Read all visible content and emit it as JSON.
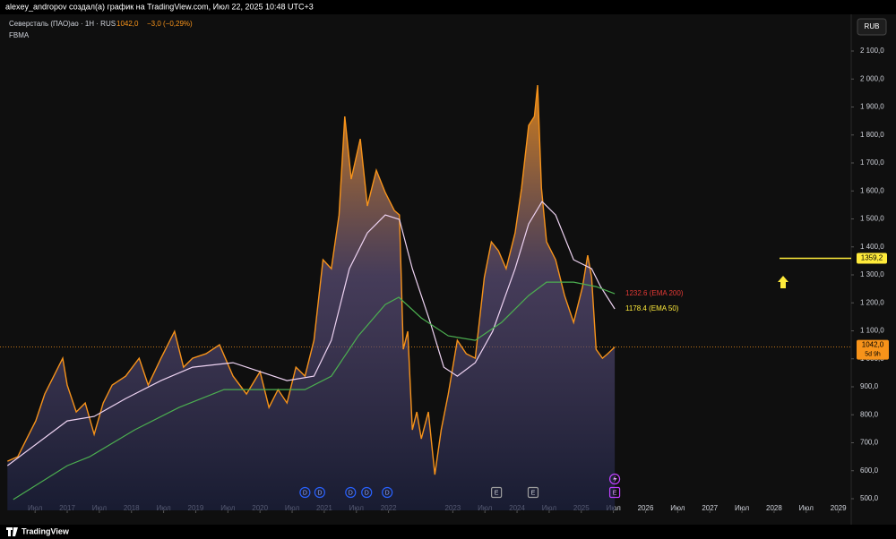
{
  "header": {
    "byline": "alexey_andropov создал(а) график на TradingView.com, Июл 22, 2025 10:48 UTC+3",
    "symbol": "Северсталь (ПАО)ао · 1H · RUS",
    "price": "1042,0",
    "change": "−3,0 (−0,29%)",
    "indicator": "FBMA",
    "currency": "RUB",
    "brand": "TradingView"
  },
  "chart_data": {
    "type": "line",
    "xlim": [
      2015.954,
      2029.2
    ],
    "ylim": [
      458.4,
      2231.2
    ],
    "yticks": [
      {
        "value": 500,
        "label": "500,0"
      },
      {
        "value": 600,
        "label": "600,0"
      },
      {
        "value": 700,
        "label": "700,0"
      },
      {
        "value": 800,
        "label": "800,0"
      },
      {
        "value": 900,
        "label": "900,0"
      },
      {
        "value": 1000,
        "label": "1 000,0"
      },
      {
        "value": 1100,
        "label": "1 100,0"
      },
      {
        "value": 1200,
        "label": "1 200,0"
      },
      {
        "value": 1300,
        "label": "1 300,0"
      },
      {
        "value": 1400,
        "label": "1 400,0"
      },
      {
        "value": 1500,
        "label": "1 500,0"
      },
      {
        "value": 1600,
        "label": "1 600,0"
      },
      {
        "value": 1700,
        "label": "1 700,0"
      },
      {
        "value": 1800,
        "label": "1 800,0"
      },
      {
        "value": 1900,
        "label": "1 900,0"
      },
      {
        "value": 2000,
        "label": "2 000,0"
      },
      {
        "value": 2100,
        "label": "2 100,0"
      }
    ],
    "xticks": [
      {
        "value": 2016.5,
        "label": "Июл"
      },
      2017,
      {
        "value": 2017.5,
        "label": "Июл"
      },
      2018,
      {
        "value": 2018.5,
        "label": "Июл"
      },
      2019,
      {
        "value": 2019.5,
        "label": "Июл"
      },
      2020,
      {
        "value": 2020.5,
        "label": "Июл"
      },
      2021,
      {
        "value": 2021.5,
        "label": "Июл"
      },
      2022,
      2023,
      {
        "value": 2023.5,
        "label": "Июл"
      },
      2024,
      {
        "value": 2024.5,
        "label": "Июл"
      },
      2025,
      {
        "value": 2025.5,
        "label": "Июл"
      },
      2026,
      {
        "value": 2026.5,
        "label": "Июл"
      },
      2027,
      {
        "value": 2027.5,
        "label": "Июл"
      },
      2028,
      {
        "value": 2028.5,
        "label": "Июл"
      },
      2029
    ],
    "series": [
      {
        "color": "#f7931a",
        "area": true,
        "x": [
          2016.07,
          2016.23,
          2016.37,
          2016.51,
          2016.65,
          2016.79,
          2016.93,
          2017.0,
          2017.14,
          2017.28,
          2017.42,
          2017.56,
          2017.7,
          2017.91,
          2018.12,
          2018.26,
          2018.46,
          2018.67,
          2018.81,
          2018.95,
          2019.16,
          2019.37,
          2019.58,
          2019.79,
          2020.0,
          2020.14,
          2020.28,
          2020.42,
          2020.56,
          2020.7,
          2020.84,
          2020.98,
          2021.11,
          2021.23,
          2021.32,
          2021.42,
          2021.56,
          2021.67,
          2021.81,
          2021.95,
          2022.09,
          2022.17,
          2022.23,
          2022.3,
          2022.37,
          2022.44,
          2022.51,
          2022.62,
          2022.72,
          2022.82,
          2022.93,
          2023.07,
          2023.21,
          2023.35,
          2023.49,
          2023.6,
          2023.71,
          2023.83,
          2023.97,
          2024.07,
          2024.18,
          2024.27,
          2024.32,
          2024.38,
          2024.46,
          2024.6,
          2024.74,
          2024.88,
          2025.02,
          2025.1,
          2025.16,
          2025.23,
          2025.33,
          2025.41,
          2025.52
        ],
        "values": [
          634,
          650,
          714,
          778,
          874,
          938,
          1002,
          906,
          810,
          842,
          730,
          842,
          906,
          938,
          1002,
          906,
          1002,
          1098,
          970,
          1002,
          1018,
          1050,
          938,
          874,
          954,
          826,
          890,
          842,
          970,
          938,
          1066,
          1354,
          1322,
          1514,
          1866,
          1642,
          1786,
          1546,
          1674,
          1594,
          1530,
          1514,
          1034,
          1098,
          746,
          810,
          714,
          810,
          586,
          746,
          874,
          1066,
          1018,
          1002,
          1290,
          1418,
          1386,
          1322,
          1450,
          1610,
          1834,
          1866,
          1978,
          1610,
          1418,
          1354,
          1226,
          1130,
          1258,
          1370,
          1290,
          1034,
          1002,
          1018,
          1042
        ]
      },
      {
        "color": "#eed3f2",
        "x": [
          2016.07,
          2017.0,
          2017.42,
          2017.91,
          2018.46,
          2018.95,
          2019.58,
          2020.0,
          2020.42,
          2020.84,
          2021.11,
          2021.39,
          2021.67,
          2021.95,
          2022.17,
          2022.37,
          2022.65,
          2022.86,
          2023.07,
          2023.35,
          2023.62,
          2023.97,
          2024.18,
          2024.39,
          2024.6,
          2024.88,
          2025.16,
          2025.3,
          2025.52
        ],
        "values": [
          618,
          778,
          794,
          858,
          922,
          970,
          986,
          954,
          922,
          938,
          1066,
          1322,
          1450,
          1514,
          1498,
          1322,
          1130,
          970,
          938,
          986,
          1098,
          1322,
          1482,
          1562,
          1514,
          1354,
          1322,
          1258,
          1178.4
        ]
      },
      {
        "color": "#4caf50",
        "x": [
          2016.16,
          2017.0,
          2017.35,
          2018.05,
          2018.74,
          2019.44,
          2020.0,
          2020.7,
          2021.11,
          2021.53,
          2021.95,
          2022.16,
          2022.51,
          2022.93,
          2023.35,
          2023.76,
          2024.18,
          2024.46,
          2024.88,
          2025.23,
          2025.52
        ],
        "values": [
          497,
          618,
          650,
          746,
          826,
          890,
          890,
          890,
          938,
          1082,
          1194,
          1220,
          1146,
          1082,
          1066,
          1130,
          1226,
          1274,
          1274,
          1258,
          1232.6
        ]
      }
    ],
    "annotations": [
      {
        "text": "1232.6 (EMA 200)",
        "color": "#e53935",
        "value": 1232.6
      },
      {
        "text": "1178.4 (EMA 50)",
        "color": "#ffeb3b",
        "value": 1178.4
      }
    ],
    "price_label": {
      "value": 1042,
      "label": "1042,0",
      "countdown": "5d 9h",
      "color": "#f7931a"
    },
    "target": {
      "value": 1359.2,
      "label": "1359,2",
      "color": "#ffeb3b"
    },
    "events": [
      {
        "x": 2020.7,
        "label": "D",
        "kind": "dividend"
      },
      {
        "x": 2020.93,
        "label": "D",
        "kind": "dividend"
      },
      {
        "x": 2021.41,
        "label": "D",
        "kind": "dividend"
      },
      {
        "x": 2021.66,
        "label": "D",
        "kind": "dividend"
      },
      {
        "x": 2021.98,
        "label": "D",
        "kind": "dividend"
      },
      {
        "x": 2023.68,
        "label": "E",
        "kind": "earnings"
      },
      {
        "x": 2024.25,
        "label": "E",
        "kind": "earnings"
      },
      {
        "x": 2025.52,
        "label": "E",
        "kind": "upcoming"
      }
    ]
  }
}
